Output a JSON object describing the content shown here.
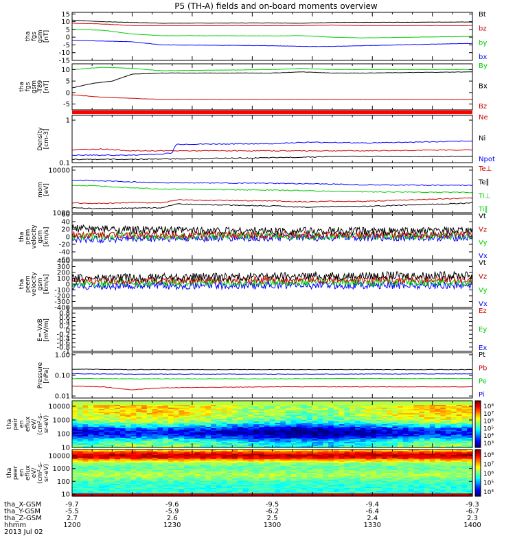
{
  "title": "P5 (TH-A) fields and on-board moments overview",
  "chart_data": [
    {
      "type": "line",
      "ylabel": [
        "tha",
        "fgs",
        "gsm",
        "[nT]"
      ],
      "yticks": [
        15,
        10,
        5,
        0,
        -5,
        -10,
        -15
      ],
      "ylim": [
        -15,
        16
      ],
      "legend": [
        {
          "name": "Bt",
          "color": "#000000"
        },
        {
          "name": "bz",
          "color": "#cc0000"
        },
        {
          "name": "by",
          "color": "#00cc00"
        },
        {
          "name": "bx",
          "color": "#0000ff"
        }
      ],
      "series": [
        {
          "name": "Bt",
          "color": "#000000",
          "x": [
            1200,
            1215,
            1230,
            1245,
            1300,
            1315,
            1330,
            1345,
            1400
          ],
          "y": [
            11,
            10,
            9.5,
            9,
            9.2,
            9,
            9.5,
            9.5,
            9.8
          ]
        },
        {
          "name": "bz",
          "color": "#cc0000",
          "x": [
            1200,
            1215,
            1230,
            1245,
            1300,
            1315,
            1330,
            1345,
            1400
          ],
          "y": [
            9,
            8.5,
            7.5,
            7.5,
            7.5,
            7.5,
            7.8,
            7.5,
            7.5
          ]
        },
        {
          "name": "by",
          "color": "#00cc00",
          "x": [
            1200,
            1215,
            1230,
            1245,
            1300,
            1315,
            1330,
            1345,
            1400
          ],
          "y": [
            5,
            4.5,
            2,
            1,
            0.8,
            1,
            0,
            -0.5,
            0.5
          ]
        },
        {
          "name": "bx",
          "color": "#0000ff",
          "x": [
            1200,
            1215,
            1230,
            1245,
            1300,
            1315,
            1330,
            1345,
            1400
          ],
          "y": [
            -2,
            -2.5,
            -3,
            -5,
            -5.5,
            -6,
            -6,
            -5.5,
            -4
          ]
        }
      ]
    },
    {
      "type": "line",
      "ylabel": [
        "tha",
        "fgs",
        "gsm",
        "-T89",
        "[nT]"
      ],
      "yticks": [
        10,
        5,
        0,
        -5
      ],
      "ylim": [
        -7.5,
        12.5
      ],
      "legend": [
        {
          "name": "By",
          "color": "#00cc00"
        },
        {
          "name": "Bx",
          "color": "#000000"
        },
        {
          "name": "Bz",
          "color": "#cc0000"
        }
      ],
      "series": [
        {
          "name": "By",
          "color": "#00cc00",
          "x": [
            1200,
            1215,
            1230,
            1245,
            1300,
            1315,
            1330,
            1345,
            1400
          ],
          "y": [
            10,
            11,
            10.5,
            9.5,
            10,
            10.5,
            10,
            10,
            10
          ]
        },
        {
          "name": "Bx",
          "color": "#000000",
          "x": [
            1200,
            1210,
            1220,
            1230,
            1245,
            1300,
            1315,
            1330,
            1345,
            1400
          ],
          "y": [
            2,
            4,
            5,
            8,
            8.5,
            8.5,
            9,
            8.5,
            8.5,
            9
          ]
        },
        {
          "name": "Bz",
          "color": "#cc0000",
          "x": [
            1200,
            1215,
            1230,
            1245,
            1300,
            1315,
            1330,
            1345,
            1400
          ],
          "y": [
            -1,
            -2,
            -2.5,
            -3,
            -3,
            -3,
            -3,
            -3,
            -3
          ]
        }
      ]
    },
    {
      "type": "line",
      "scale": "log",
      "ylabel": [
        "Density",
        "[cm-3]"
      ],
      "yticks": [
        1.0,
        0.1
      ],
      "ylim": [
        0.1,
        1.3
      ],
      "legend": [
        {
          "name": "Ne",
          "color": "#cc0000"
        },
        {
          "name": "Ni",
          "color": "#000000"
        },
        {
          "name": "Npot",
          "color": "#0000ff"
        }
      ],
      "series": [
        {
          "name": "Ne",
          "color": "#cc0000",
          "x": [
            1200,
            1215,
            1230,
            1245,
            1300,
            1315,
            1330,
            1345,
            1400
          ],
          "y": [
            0.2,
            0.21,
            0.19,
            0.19,
            0.19,
            0.19,
            0.19,
            0.19,
            0.2
          ]
        },
        {
          "name": "Npot",
          "color": "#0000ff",
          "x": [
            1200,
            1230,
            1245,
            1250,
            1252,
            1300,
            1315,
            1330,
            1345,
            1400
          ],
          "y": [
            0.15,
            0.15,
            0.16,
            0.17,
            0.27,
            0.28,
            0.3,
            0.3,
            0.29,
            0.32
          ]
        },
        {
          "name": "Ni",
          "color": "#000000",
          "x": [
            1200,
            1230,
            1300,
            1330,
            1400
          ],
          "y": [
            0.12,
            0.12,
            0.13,
            0.14,
            0.14
          ]
        }
      ]
    },
    {
      "type": "line",
      "scale": "log",
      "ylabel": [
        "mom",
        "[eV]"
      ],
      "yticks": [
        10000,
        1000
      ],
      "ylim": [
        1000,
        12000
      ],
      "legend": [
        {
          "name": "Te⊥",
          "color": "#cc0000"
        },
        {
          "name": "Te∥",
          "color": "#000000"
        },
        {
          "name": "Ti⊥",
          "color": "#00cc00"
        },
        {
          "name": "Ti∥",
          "color": "#00cc00"
        }
      ],
      "series": [
        {
          "name": "Ti⊥",
          "color": "#0000ff",
          "x": [
            1200,
            1215,
            1230,
            1245,
            1300,
            1315,
            1330,
            1345,
            1400
          ],
          "y": [
            5800,
            5600,
            5300,
            5100,
            4900,
            4800,
            4700,
            4500,
            4400
          ]
        },
        {
          "name": "Ti∥",
          "color": "#00cc00",
          "x": [
            1200,
            1215,
            1230,
            1245,
            1300,
            1315,
            1330,
            1345,
            1400
          ],
          "y": [
            4400,
            4200,
            3900,
            3600,
            3400,
            3300,
            3200,
            3100,
            3000
          ]
        },
        {
          "name": "Te⊥",
          "color": "#cc0000",
          "x": [
            1200,
            1215,
            1230,
            1245,
            1252,
            1300,
            1315,
            1330,
            1345,
            1400
          ],
          "y": [
            1700,
            1650,
            1750,
            1700,
            2000,
            1900,
            1800,
            1850,
            1850,
            2200
          ]
        },
        {
          "name": "Te∥",
          "color": "#000000",
          "x": [
            1200,
            1215,
            1230,
            1245,
            1252,
            1300,
            1315,
            1330,
            1345,
            1400
          ],
          "y": [
            1300,
            1250,
            1300,
            1300,
            1600,
            1450,
            1350,
            1400,
            1400,
            1700
          ]
        }
      ]
    },
    {
      "type": "line",
      "noisy": true,
      "ylabel": [
        "tha",
        "peim",
        "velocity",
        "gsm",
        "[km/s]"
      ],
      "yticks": [
        60,
        40,
        20,
        0,
        -20,
        -40,
        -60
      ],
      "ylim": [
        -60,
        60
      ],
      "legend": [
        {
          "name": "Vt",
          "color": "#000000"
        },
        {
          "name": "Vz",
          "color": "#cc0000"
        },
        {
          "name": "Vy",
          "color": "#00cc00"
        },
        {
          "name": "Vx",
          "color": "#0000ff"
        }
      ],
      "series": [
        {
          "name": "Vx",
          "color": "#0000ff",
          "x": [
            1200,
            1230,
            1300,
            1330,
            1400
          ],
          "y": [
            -8,
            -5,
            -3,
            -2,
            -2
          ]
        },
        {
          "name": "Vy",
          "color": "#00cc00",
          "x": [
            1200,
            1230,
            1300,
            1330,
            1400
          ],
          "y": [
            0,
            2,
            2,
            2,
            2
          ]
        },
        {
          "name": "Vz",
          "color": "#cc0000",
          "x": [
            1200,
            1230,
            1300,
            1330,
            1400
          ],
          "y": [
            5,
            5,
            5,
            5,
            5
          ]
        },
        {
          "name": "Vt",
          "color": "#000000",
          "x": [
            1200,
            1230,
            1300,
            1330,
            1400
          ],
          "y": [
            22,
            18,
            15,
            15,
            15
          ]
        }
      ]
    },
    {
      "type": "line",
      "noisy": true,
      "ylabel": [
        "tha",
        "peem",
        "velocity",
        "gsm",
        "[km/s]"
      ],
      "yticks": [
        400,
        300,
        200,
        100,
        0,
        -100,
        -200,
        -300,
        -400
      ],
      "ylim": [
        -400,
        400
      ],
      "legend": [
        {
          "name": "Vt",
          "color": "#000000"
        },
        {
          "name": "Vz",
          "color": "#cc0000"
        },
        {
          "name": "Vy",
          "color": "#00cc00"
        },
        {
          "name": "Vx",
          "color": "#0000ff"
        }
      ],
      "series": [
        {
          "name": "Vx",
          "color": "#0000ff",
          "x": [
            1200,
            1230,
            1300,
            1330,
            1400
          ],
          "y": [
            -40,
            -30,
            -20,
            -20,
            -20
          ]
        },
        {
          "name": "Vy",
          "color": "#00cc00",
          "x": [
            1200,
            1230,
            1300,
            1330,
            1400
          ],
          "y": [
            10,
            20,
            30,
            30,
            30
          ]
        },
        {
          "name": "Vz",
          "color": "#cc0000",
          "x": [
            1200,
            1230,
            1300,
            1330,
            1400
          ],
          "y": [
            60,
            60,
            70,
            70,
            80
          ]
        },
        {
          "name": "Vt",
          "color": "#000000",
          "x": [
            1200,
            1230,
            1300,
            1330,
            1400
          ],
          "y": [
            100,
            110,
            130,
            140,
            150
          ]
        }
      ]
    },
    {
      "type": "line",
      "ylabel": [
        "E=-VxB",
        "[mV/m]"
      ],
      "yticks": [
        1.0,
        0.8,
        0.6,
        0.4,
        0.2,
        0.0,
        -0.2,
        -0.4,
        -0.6,
        -0.8,
        -1.0
      ],
      "ylim": [
        -1.0,
        1.0
      ],
      "legend": [
        {
          "name": "Ez",
          "color": "#cc0000"
        },
        {
          "name": "Ey",
          "color": "#00cc00"
        },
        {
          "name": "Ex",
          "color": "#0000ff"
        }
      ],
      "series": []
    },
    {
      "type": "line",
      "scale": "log",
      "ylabel": [
        "Pressure",
        "[nPa]"
      ],
      "yticks": [
        1.0,
        0.1,
        0.01
      ],
      "yticklabels": [
        "1.00",
        "0.10",
        "0.01"
      ],
      "ylim": [
        0.008,
        1.25
      ],
      "legend": [
        {
          "name": "Pt",
          "color": "#000000"
        },
        {
          "name": "Pb",
          "color": "#cc0000"
        },
        {
          "name": "Pe",
          "color": "#00cc00"
        },
        {
          "name": "Pi",
          "color": "#0000ff"
        }
      ],
      "series": [
        {
          "name": "Pt",
          "color": "#000000",
          "x": [
            1200,
            1230,
            1300,
            1330,
            1400
          ],
          "y": [
            0.2,
            0.19,
            0.19,
            0.19,
            0.19
          ]
        },
        {
          "name": "Pi",
          "color": "#0000ff",
          "x": [
            1200,
            1230,
            1300,
            1330,
            1400
          ],
          "y": [
            0.12,
            0.115,
            0.115,
            0.115,
            0.12
          ]
        },
        {
          "name": "Pe",
          "color": "#00cc00",
          "x": [
            1200,
            1230,
            1300,
            1330,
            1400
          ],
          "y": [
            0.07,
            0.068,
            0.068,
            0.07,
            0.07
          ]
        },
        {
          "name": "Pb",
          "color": "#cc0000",
          "x": [
            1200,
            1215,
            1225,
            1230,
            1245,
            1300,
            1330,
            1400
          ],
          "y": [
            0.03,
            0.028,
            0.022,
            0.02,
            0.025,
            0.028,
            0.028,
            0.028
          ]
        }
      ]
    },
    {
      "type": "heatmap",
      "scale": "log",
      "ylabel": [
        "tha",
        "peir",
        "en",
        "eflux",
        "eV/",
        "(cm^2-s-",
        "sr-eV)"
      ],
      "yticks": [
        10000,
        1000,
        100,
        10
      ],
      "ylim": [
        10,
        25000
      ],
      "colorbar": {
        "labels": [
          "10^8",
          "10^7",
          "10^6",
          "10^5",
          "10^4",
          "10^3"
        ]
      }
    },
    {
      "type": "heatmap",
      "scale": "log",
      "ylabel": [
        "tha",
        "peer",
        "en",
        "eflux",
        "eV/",
        "(cm^2-s-",
        "sr-eV)"
      ],
      "yticks": [
        10000,
        1000,
        100,
        10
      ],
      "ylim": [
        7,
        30000
      ],
      "colorbar": {
        "labels": [
          "10^8",
          "10^7",
          "10^6",
          "10^5",
          "10^4"
        ]
      }
    }
  ],
  "x_axis": {
    "range": [
      1200,
      1400
    ],
    "rows": [
      {
        "label": "tha_X-GSM",
        "values": [
          "-9.7",
          "-9.6",
          "-9.5",
          "-9.4",
          "-9.3"
        ]
      },
      {
        "label": "tha_Y-GSM",
        "values": [
          "-5.5",
          "-5.9",
          "-6.2",
          "-6.4",
          "-6.7"
        ]
      },
      {
        "label": "tha_Z-GSM",
        "values": [
          "2.7",
          "2.6",
          "2.5",
          "2.4",
          "2.3"
        ]
      },
      {
        "label": "hhmm",
        "values": [
          "1200",
          "1230",
          "1300",
          "1330",
          "1400"
        ]
      }
    ],
    "date": "2013 Jul 02"
  }
}
